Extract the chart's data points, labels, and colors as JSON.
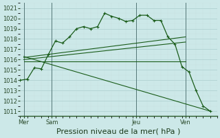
{
  "background_color": "#cce8e8",
  "grid_color_major": "#aacece",
  "grid_color_minor": "#ddf0f0",
  "line_color": "#1a5c1a",
  "title": "Pression niveau de la mer( hPa )",
  "ylim": [
    1010.5,
    1021.5
  ],
  "yticks": [
    1011,
    1012,
    1013,
    1014,
    1015,
    1016,
    1017,
    1018,
    1019,
    1020,
    1021
  ],
  "xlim": [
    0,
    28
  ],
  "day_labels": [
    "Mer",
    "Sam",
    "Jeu",
    "Ven"
  ],
  "day_positions": [
    0.5,
    4.5,
    16.5,
    23.5
  ],
  "vline_positions": [
    0.5,
    4.5,
    16.5,
    23.5
  ],
  "series1_x": [
    0,
    1,
    2,
    3,
    4,
    5,
    6,
    7,
    8,
    9,
    10,
    11,
    12,
    13,
    14,
    15,
    16,
    17,
    18,
    19,
    20,
    21,
    22,
    23,
    24,
    25,
    26,
    27
  ],
  "series1_y": [
    1014.0,
    1014.1,
    1015.2,
    1015.1,
    1016.5,
    1017.8,
    1017.6,
    1018.2,
    1019.0,
    1019.2,
    1019.0,
    1019.2,
    1020.5,
    1020.2,
    1020.0,
    1019.7,
    1019.8,
    1020.3,
    1020.3,
    1019.8,
    1019.8,
    1018.2,
    1017.5,
    1015.3,
    1014.8,
    1013.0,
    1011.5,
    1011.0
  ],
  "trend1_x": [
    0.5,
    23.5
  ],
  "trend1_y": [
    1016.2,
    1018.2
  ],
  "trend2_x": [
    0.5,
    23.5
  ],
  "trend2_y": [
    1016.0,
    1017.7
  ],
  "trend3_x": [
    0.5,
    23.5
  ],
  "trend3_y": [
    1015.8,
    1015.8
  ],
  "trend4_x": [
    0.5,
    27
  ],
  "trend4_y": [
    1016.3,
    1011.0
  ],
  "title_fontsize": 8,
  "tick_labelsize": 6
}
